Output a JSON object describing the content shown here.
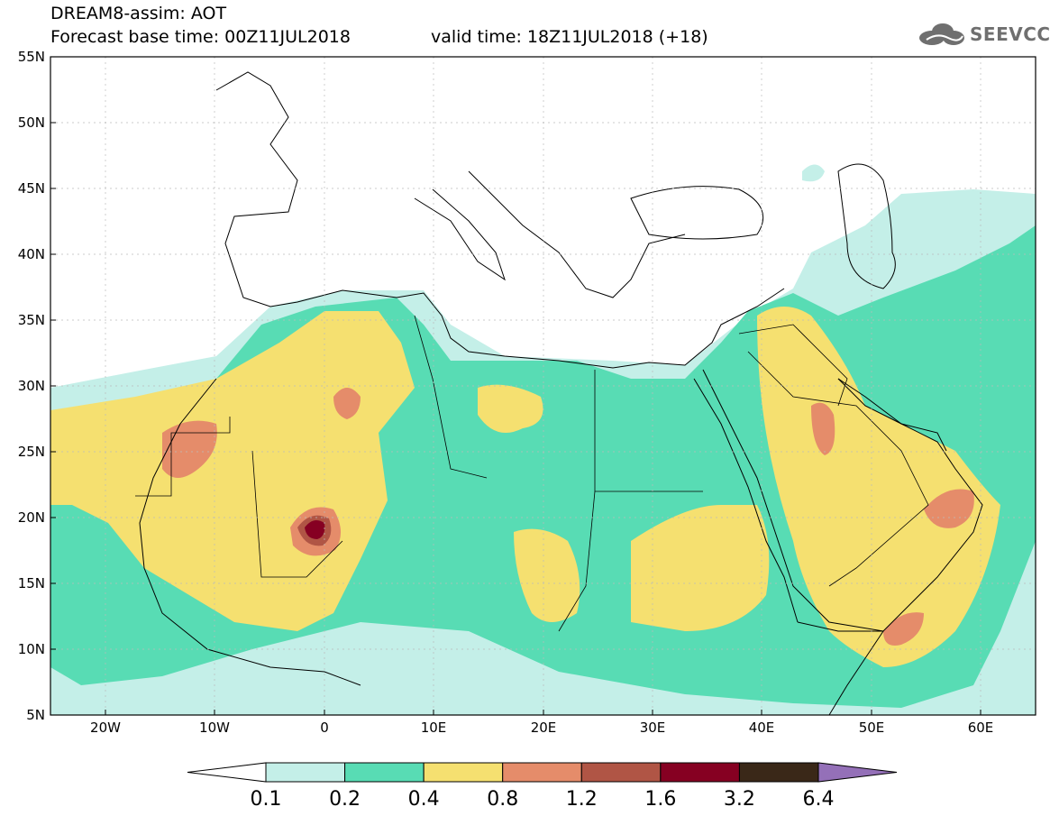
{
  "title": {
    "line1": "DREAM8-assim: AOT",
    "forecast_base": "Forecast base time: 00Z11JUL2018",
    "valid_time": "valid time: 18Z11JUL2018 (+18)"
  },
  "logo": {
    "text": "SEEVCCC",
    "icon": "cloud-icon"
  },
  "map": {
    "lat_labels": [
      "55N",
      "50N",
      "45N",
      "40N",
      "35N",
      "30N",
      "25N",
      "20N",
      "15N",
      "10N",
      "5N"
    ],
    "lon_labels": [
      "20W",
      "10W",
      "0",
      "10E",
      "20E",
      "30E",
      "40E",
      "50E",
      "60E"
    ],
    "lat_range": [
      5,
      55
    ],
    "lon_range": [
      -25,
      65
    ],
    "grid": true
  },
  "colorbar": {
    "labels": [
      "0.1",
      "0.2",
      "0.4",
      "0.8",
      "1.2",
      "1.6",
      "3.2",
      "6.4"
    ],
    "colors": [
      "#ffffff",
      "#c4efe8",
      "#58dcb4",
      "#f5e070",
      "#e58c6a",
      "#b05545",
      "#860022",
      "#3a2818",
      "#9470b8"
    ]
  }
}
